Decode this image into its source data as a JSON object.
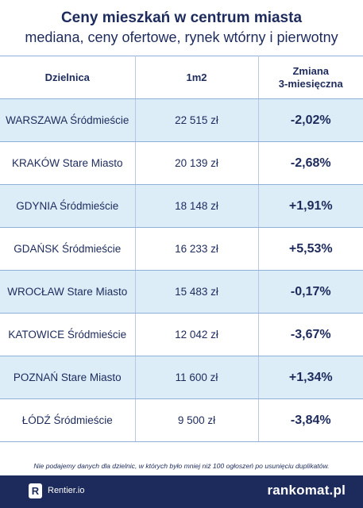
{
  "chart_data": {
    "type": "table",
    "title": "Ceny mieszkań w centrum miasta",
    "subtitle": "mediana, ceny ofertowe, rynek wtórny i pierwotny",
    "columns": [
      "Dzielnica",
      "1m2",
      "Zmiana\n3-miesięczna"
    ],
    "rows": [
      {
        "district": "WARSZAWA Śródmieście",
        "price": "22 515 zł",
        "change": "-2,02%"
      },
      {
        "district": "KRAKÓW Stare Miasto",
        "price": "20 139 zł",
        "change": "-2,68%"
      },
      {
        "district": "GDYNIA Śródmieście",
        "price": "18 148 zł",
        "change": "+1,91%"
      },
      {
        "district": "GDAŃSK Śródmieście",
        "price": "16 233 zł",
        "change": "+5,53%"
      },
      {
        "district": "WROCŁAW Stare Miasto",
        "price": "15 483 zł",
        "change": "-0,17%"
      },
      {
        "district": "KATOWICE Śródmieście",
        "price": "12 042 zł",
        "change": "-3,67%"
      },
      {
        "district": "POZNAŃ Stare Miasto",
        "price": "11 600 zł",
        "change": "+1,34%"
      },
      {
        "district": "ŁÓDŹ Śródmieście",
        "price": "9 500 zł",
        "change": "-3,84%"
      }
    ],
    "values_per_m2": [
      22515,
      20139,
      18148,
      16233,
      15483,
      12042,
      11600,
      9500
    ],
    "changes_pct": [
      -2.02,
      -2.68,
      1.91,
      5.53,
      -0.17,
      -3.67,
      1.34,
      -3.84
    ],
    "note": "Nie podajemy danych dla dzielnic, w których było mniej niż 100 ogłoszeń po usunięciu duplikatów."
  },
  "footer": {
    "source_logo_letter": "R",
    "source_name": "Rentier.io",
    "brand": "rankomat.pl"
  },
  "colors": {
    "text": "#1d2b5c",
    "row_highlight": "#dcedf8",
    "footer_bg": "#1d2b5c"
  }
}
